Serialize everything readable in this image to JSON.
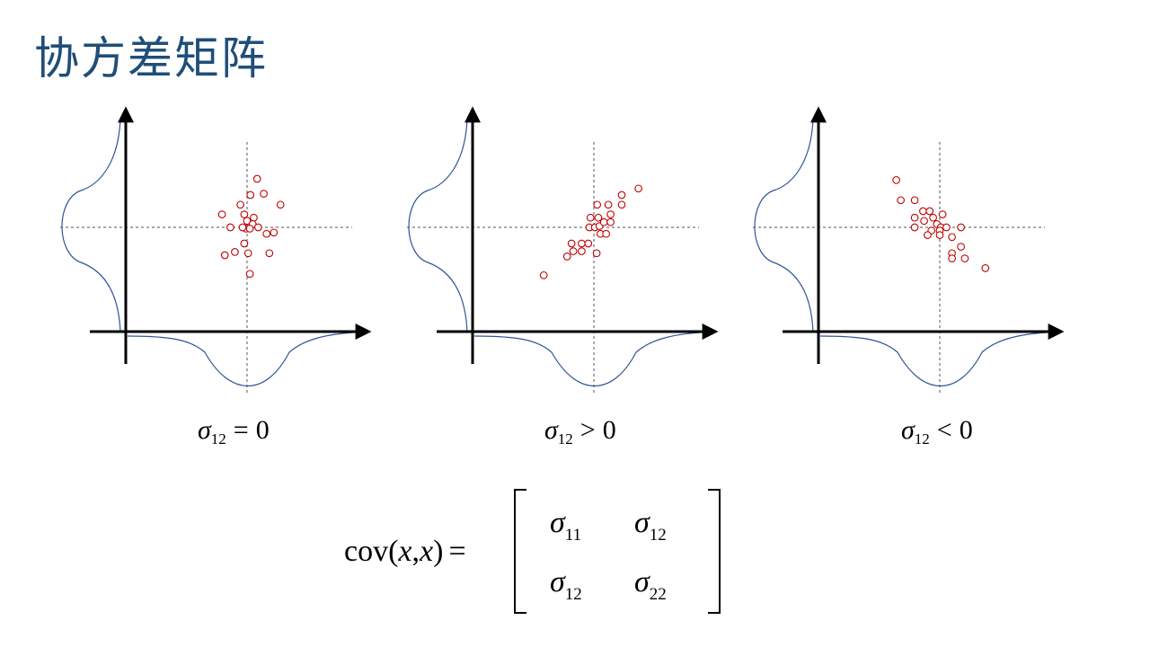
{
  "slide": {
    "title": "协方差矩阵"
  },
  "colors": {
    "title": "#1f4e79",
    "axis": "#000000",
    "curve": "#2f5597",
    "points": "#c00000",
    "guide": "#555555"
  },
  "panels": [
    {
      "id": "zero",
      "caption": {
        "symbol": "σ",
        "sub": "12",
        "relation": "=",
        "rhs": "0"
      },
      "points": [
        [
          0.18,
          0.75
        ],
        [
          -0.12,
          0.35
        ],
        [
          0.06,
          0.5
        ],
        [
          0.3,
          0.52
        ],
        [
          0.6,
          0.35
        ],
        [
          -0.45,
          0.2
        ],
        [
          -0.05,
          0.2
        ],
        [
          0.12,
          0.15
        ],
        [
          0.0,
          0.1
        ],
        [
          0.1,
          0.05
        ],
        [
          0.2,
          0.0
        ],
        [
          -0.3,
          0.0
        ],
        [
          0.35,
          -0.1
        ],
        [
          0.48,
          -0.08
        ],
        [
          -0.02,
          -0.02
        ],
        [
          -0.08,
          0.0
        ],
        [
          0.05,
          -0.02
        ],
        [
          -0.05,
          -0.25
        ],
        [
          0.02,
          -0.4
        ],
        [
          0.4,
          -0.4
        ],
        [
          -0.22,
          -0.38
        ],
        [
          -0.4,
          -0.43
        ],
        [
          0.05,
          -0.72
        ]
      ]
    },
    {
      "id": "positive",
      "caption": {
        "symbol": "σ",
        "sub": "12",
        "relation": ">",
        "rhs": "0"
      },
      "points": [
        [
          -0.9,
          -0.74
        ],
        [
          -0.48,
          -0.45
        ],
        [
          -0.37,
          -0.37
        ],
        [
          -0.22,
          -0.37
        ],
        [
          -0.4,
          -0.25
        ],
        [
          -0.22,
          -0.25
        ],
        [
          -0.1,
          -0.25
        ],
        [
          0.05,
          -0.4
        ],
        [
          0.12,
          -0.1
        ],
        [
          0.22,
          -0.1
        ],
        [
          -0.08,
          0.0
        ],
        [
          0.02,
          0.0
        ],
        [
          0.1,
          0.02
        ],
        [
          0.18,
          0.08
        ],
        [
          0.3,
          0.08
        ],
        [
          -0.06,
          0.15
        ],
        [
          0.08,
          0.15
        ],
        [
          0.3,
          0.2
        ],
        [
          0.06,
          0.35
        ],
        [
          0.26,
          0.35
        ],
        [
          0.5,
          0.35
        ],
        [
          0.5,
          0.5
        ],
        [
          0.8,
          0.6
        ]
      ]
    },
    {
      "id": "negative",
      "caption": {
        "symbol": "σ",
        "sub": "12",
        "relation": "<",
        "rhs": "0"
      },
      "points": [
        [
          -0.78,
          0.73
        ],
        [
          -0.7,
          0.42
        ],
        [
          -0.45,
          0.42
        ],
        [
          -0.3,
          0.25
        ],
        [
          -0.18,
          0.25
        ],
        [
          0.05,
          0.2
        ],
        [
          -0.45,
          0.15
        ],
        [
          -0.28,
          0.1
        ],
        [
          -0.12,
          0.15
        ],
        [
          -0.05,
          0.05
        ],
        [
          0.02,
          0.0
        ],
        [
          0.12,
          0.0
        ],
        [
          0.38,
          0.0
        ],
        [
          -0.45,
          0.0
        ],
        [
          -0.15,
          -0.05
        ],
        [
          0.0,
          -0.05
        ],
        [
          -0.22,
          -0.12
        ],
        [
          0.0,
          -0.12
        ],
        [
          0.22,
          -0.15
        ],
        [
          0.38,
          -0.3
        ],
        [
          0.22,
          -0.4
        ],
        [
          0.22,
          -0.48
        ],
        [
          0.45,
          -0.48
        ],
        [
          0.82,
          -0.63
        ]
      ]
    }
  ],
  "formula": {
    "lhs": "cov(x,x) =",
    "cov_func": "cov",
    "open_paren": "(",
    "var1": "x",
    "comma": ",",
    "var2": "x",
    "close_paren": ")",
    "equals": "=",
    "matrix": [
      [
        {
          "symbol": "σ",
          "sub": "11"
        },
        {
          "symbol": "σ",
          "sub": "12"
        }
      ],
      [
        {
          "symbol": "σ",
          "sub": "12"
        },
        {
          "symbol": "σ",
          "sub": "22"
        }
      ]
    ]
  }
}
